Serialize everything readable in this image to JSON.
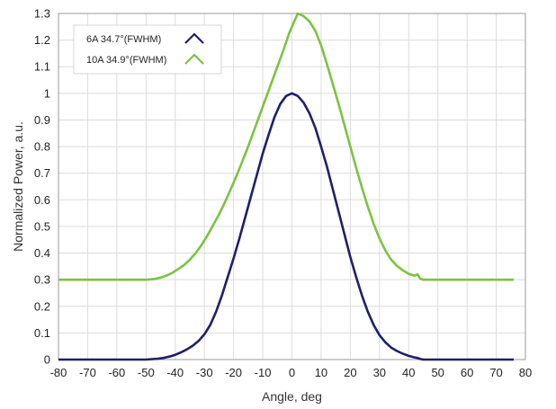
{
  "chart_data": {
    "type": "line",
    "title": "",
    "xlabel": "Angle, deg",
    "ylabel": "Normalized Power, a.u.",
    "xlim": [
      -80,
      80
    ],
    "ylim": [
      0,
      1.3
    ],
    "x_ticks": [
      -80,
      -70,
      -60,
      -50,
      -40,
      -30,
      -20,
      -10,
      0,
      10,
      20,
      30,
      40,
      50,
      60,
      70,
      80
    ],
    "y_ticks": [
      0,
      0.1,
      0.2,
      0.3,
      0.4,
      0.5,
      0.6,
      0.7,
      0.8,
      0.9,
      1,
      1.1,
      1.2,
      1.3
    ],
    "grid": true,
    "legend_position": "top-left",
    "series": [
      {
        "name": "6A 34.7°(FWHM)",
        "color": "#1f1f6b",
        "points": [
          [
            -80,
            0
          ],
          [
            -50,
            0
          ],
          [
            -46,
            0.003
          ],
          [
            -44,
            0.006
          ],
          [
            -42,
            0.011
          ],
          [
            -40,
            0.018
          ],
          [
            -38,
            0.027
          ],
          [
            -36,
            0.038
          ],
          [
            -34,
            0.052
          ],
          [
            -32,
            0.07
          ],
          [
            -30,
            0.095
          ],
          [
            -28,
            0.13
          ],
          [
            -26,
            0.18
          ],
          [
            -24,
            0.24
          ],
          [
            -22,
            0.31
          ],
          [
            -20,
            0.38
          ],
          [
            -18,
            0.455
          ],
          [
            -16,
            0.535
          ],
          [
            -14,
            0.615
          ],
          [
            -12,
            0.695
          ],
          [
            -10,
            0.775
          ],
          [
            -8,
            0.845
          ],
          [
            -6,
            0.91
          ],
          [
            -4,
            0.96
          ],
          [
            -2,
            0.99
          ],
          [
            0,
            1.0
          ],
          [
            2,
            0.99
          ],
          [
            4,
            0.965
          ],
          [
            6,
            0.925
          ],
          [
            8,
            0.87
          ],
          [
            10,
            0.8
          ],
          [
            12,
            0.725
          ],
          [
            14,
            0.64
          ],
          [
            16,
            0.555
          ],
          [
            18,
            0.47
          ],
          [
            20,
            0.385
          ],
          [
            22,
            0.31
          ],
          [
            24,
            0.24
          ],
          [
            26,
            0.18
          ],
          [
            28,
            0.13
          ],
          [
            30,
            0.092
          ],
          [
            32,
            0.065
          ],
          [
            34,
            0.045
          ],
          [
            36,
            0.032
          ],
          [
            38,
            0.022
          ],
          [
            40,
            0.014
          ],
          [
            42,
            0.008
          ],
          [
            43,
            0.006
          ],
          [
            44,
            0.002
          ],
          [
            45,
            0
          ],
          [
            76,
            0
          ]
        ]
      },
      {
        "name": "10A 34.9°(FWHM)",
        "color": "#7dc242",
        "points": [
          [
            -80,
            0.3
          ],
          [
            -50,
            0.3
          ],
          [
            -47,
            0.303
          ],
          [
            -45,
            0.308
          ],
          [
            -43,
            0.315
          ],
          [
            -41,
            0.326
          ],
          [
            -39,
            0.34
          ],
          [
            -37,
            0.355
          ],
          [
            -35,
            0.375
          ],
          [
            -33,
            0.4
          ],
          [
            -31,
            0.43
          ],
          [
            -29,
            0.465
          ],
          [
            -27,
            0.505
          ],
          [
            -25,
            0.545
          ],
          [
            -23,
            0.59
          ],
          [
            -21,
            0.64
          ],
          [
            -19,
            0.69
          ],
          [
            -17,
            0.745
          ],
          [
            -15,
            0.8
          ],
          [
            -13,
            0.86
          ],
          [
            -11,
            0.92
          ],
          [
            -9,
            0.98
          ],
          [
            -7,
            1.04
          ],
          [
            -5,
            1.1
          ],
          [
            -3,
            1.16
          ],
          [
            -1,
            1.225
          ],
          [
            1,
            1.275
          ],
          [
            2,
            1.3
          ],
          [
            4,
            1.29
          ],
          [
            6,
            1.27
          ],
          [
            8,
            1.235
          ],
          [
            10,
            1.18
          ],
          [
            12,
            1.11
          ],
          [
            14,
            1.035
          ],
          [
            16,
            0.96
          ],
          [
            18,
            0.88
          ],
          [
            20,
            0.8
          ],
          [
            22,
            0.72
          ],
          [
            24,
            0.645
          ],
          [
            26,
            0.575
          ],
          [
            28,
            0.51
          ],
          [
            30,
            0.455
          ],
          [
            32,
            0.41
          ],
          [
            34,
            0.375
          ],
          [
            36,
            0.352
          ],
          [
            38,
            0.335
          ],
          [
            40,
            0.322
          ],
          [
            42,
            0.315
          ],
          [
            43,
            0.32
          ],
          [
            44,
            0.304
          ],
          [
            45,
            0.3
          ],
          [
            76,
            0.3
          ]
        ]
      }
    ]
  }
}
